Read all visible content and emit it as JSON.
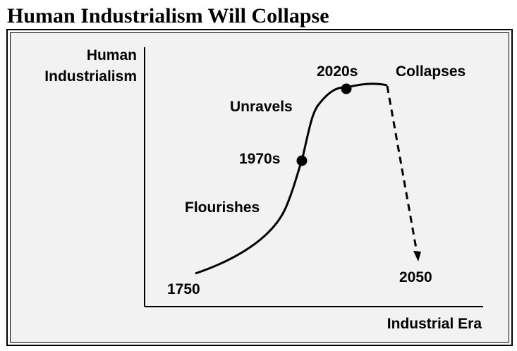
{
  "title": "Human Industrialism Will Collapse",
  "axes": {
    "y_label_line1": "Human",
    "y_label_line2": "Industrialism",
    "x_label": "Industrial Era"
  },
  "annotations": {
    "start": "1750",
    "flourishes": "Flourishes",
    "mid": "1970s",
    "unravels": "Unravels",
    "peak": "2020s",
    "collapses": "Collapses",
    "end": "2050"
  },
  "colors": {
    "background": "#f2f2f2",
    "ink": "#000000"
  }
}
